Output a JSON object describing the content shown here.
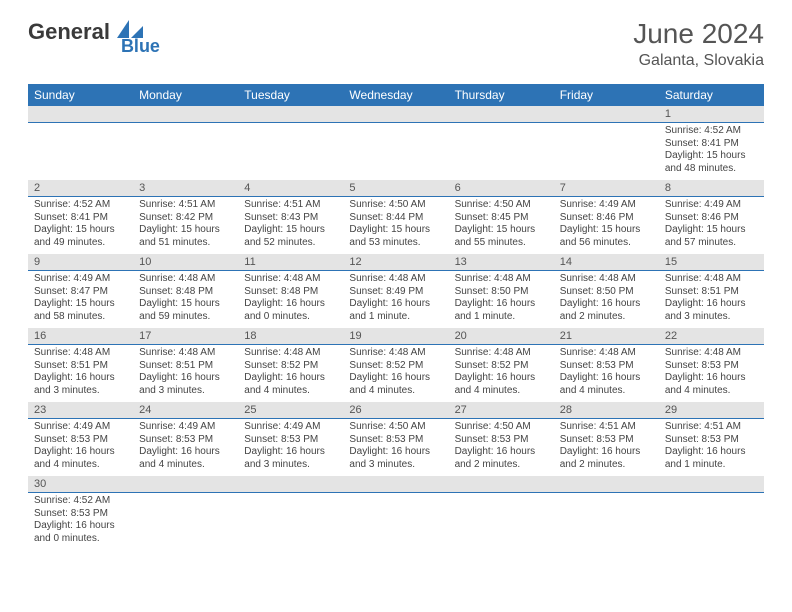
{
  "logo": {
    "text1": "General",
    "text2": "Blue"
  },
  "title": "June 2024",
  "location": "Galanta, Slovakia",
  "colors": {
    "header_bg": "#2d73b5",
    "header_fg": "#ffffff",
    "strip_bg": "#e4e4e4",
    "text": "#3a3a3a"
  },
  "dow": [
    "Sunday",
    "Monday",
    "Tuesday",
    "Wednesday",
    "Thursday",
    "Friday",
    "Saturday"
  ],
  "weeks": [
    {
      "nums": [
        "",
        "",
        "",
        "",
        "",
        "",
        "1"
      ],
      "cells": [
        null,
        null,
        null,
        null,
        null,
        null,
        {
          "sunrise": "Sunrise: 4:52 AM",
          "sunset": "Sunset: 8:41 PM",
          "daylight1": "Daylight: 15 hours",
          "daylight2": "and 48 minutes."
        }
      ]
    },
    {
      "nums": [
        "2",
        "3",
        "4",
        "5",
        "6",
        "7",
        "8"
      ],
      "cells": [
        {
          "sunrise": "Sunrise: 4:52 AM",
          "sunset": "Sunset: 8:41 PM",
          "daylight1": "Daylight: 15 hours",
          "daylight2": "and 49 minutes."
        },
        {
          "sunrise": "Sunrise: 4:51 AM",
          "sunset": "Sunset: 8:42 PM",
          "daylight1": "Daylight: 15 hours",
          "daylight2": "and 51 minutes."
        },
        {
          "sunrise": "Sunrise: 4:51 AM",
          "sunset": "Sunset: 8:43 PM",
          "daylight1": "Daylight: 15 hours",
          "daylight2": "and 52 minutes."
        },
        {
          "sunrise": "Sunrise: 4:50 AM",
          "sunset": "Sunset: 8:44 PM",
          "daylight1": "Daylight: 15 hours",
          "daylight2": "and 53 minutes."
        },
        {
          "sunrise": "Sunrise: 4:50 AM",
          "sunset": "Sunset: 8:45 PM",
          "daylight1": "Daylight: 15 hours",
          "daylight2": "and 55 minutes."
        },
        {
          "sunrise": "Sunrise: 4:49 AM",
          "sunset": "Sunset: 8:46 PM",
          "daylight1": "Daylight: 15 hours",
          "daylight2": "and 56 minutes."
        },
        {
          "sunrise": "Sunrise: 4:49 AM",
          "sunset": "Sunset: 8:46 PM",
          "daylight1": "Daylight: 15 hours",
          "daylight2": "and 57 minutes."
        }
      ]
    },
    {
      "nums": [
        "9",
        "10",
        "11",
        "12",
        "13",
        "14",
        "15"
      ],
      "cells": [
        {
          "sunrise": "Sunrise: 4:49 AM",
          "sunset": "Sunset: 8:47 PM",
          "daylight1": "Daylight: 15 hours",
          "daylight2": "and 58 minutes."
        },
        {
          "sunrise": "Sunrise: 4:48 AM",
          "sunset": "Sunset: 8:48 PM",
          "daylight1": "Daylight: 15 hours",
          "daylight2": "and 59 minutes."
        },
        {
          "sunrise": "Sunrise: 4:48 AM",
          "sunset": "Sunset: 8:48 PM",
          "daylight1": "Daylight: 16 hours",
          "daylight2": "and 0 minutes."
        },
        {
          "sunrise": "Sunrise: 4:48 AM",
          "sunset": "Sunset: 8:49 PM",
          "daylight1": "Daylight: 16 hours",
          "daylight2": "and 1 minute."
        },
        {
          "sunrise": "Sunrise: 4:48 AM",
          "sunset": "Sunset: 8:50 PM",
          "daylight1": "Daylight: 16 hours",
          "daylight2": "and 1 minute."
        },
        {
          "sunrise": "Sunrise: 4:48 AM",
          "sunset": "Sunset: 8:50 PM",
          "daylight1": "Daylight: 16 hours",
          "daylight2": "and 2 minutes."
        },
        {
          "sunrise": "Sunrise: 4:48 AM",
          "sunset": "Sunset: 8:51 PM",
          "daylight1": "Daylight: 16 hours",
          "daylight2": "and 3 minutes."
        }
      ]
    },
    {
      "nums": [
        "16",
        "17",
        "18",
        "19",
        "20",
        "21",
        "22"
      ],
      "cells": [
        {
          "sunrise": "Sunrise: 4:48 AM",
          "sunset": "Sunset: 8:51 PM",
          "daylight1": "Daylight: 16 hours",
          "daylight2": "and 3 minutes."
        },
        {
          "sunrise": "Sunrise: 4:48 AM",
          "sunset": "Sunset: 8:51 PM",
          "daylight1": "Daylight: 16 hours",
          "daylight2": "and 3 minutes."
        },
        {
          "sunrise": "Sunrise: 4:48 AM",
          "sunset": "Sunset: 8:52 PM",
          "daylight1": "Daylight: 16 hours",
          "daylight2": "and 4 minutes."
        },
        {
          "sunrise": "Sunrise: 4:48 AM",
          "sunset": "Sunset: 8:52 PM",
          "daylight1": "Daylight: 16 hours",
          "daylight2": "and 4 minutes."
        },
        {
          "sunrise": "Sunrise: 4:48 AM",
          "sunset": "Sunset: 8:52 PM",
          "daylight1": "Daylight: 16 hours",
          "daylight2": "and 4 minutes."
        },
        {
          "sunrise": "Sunrise: 4:48 AM",
          "sunset": "Sunset: 8:53 PM",
          "daylight1": "Daylight: 16 hours",
          "daylight2": "and 4 minutes."
        },
        {
          "sunrise": "Sunrise: 4:48 AM",
          "sunset": "Sunset: 8:53 PM",
          "daylight1": "Daylight: 16 hours",
          "daylight2": "and 4 minutes."
        }
      ]
    },
    {
      "nums": [
        "23",
        "24",
        "25",
        "26",
        "27",
        "28",
        "29"
      ],
      "cells": [
        {
          "sunrise": "Sunrise: 4:49 AM",
          "sunset": "Sunset: 8:53 PM",
          "daylight1": "Daylight: 16 hours",
          "daylight2": "and 4 minutes."
        },
        {
          "sunrise": "Sunrise: 4:49 AM",
          "sunset": "Sunset: 8:53 PM",
          "daylight1": "Daylight: 16 hours",
          "daylight2": "and 4 minutes."
        },
        {
          "sunrise": "Sunrise: 4:49 AM",
          "sunset": "Sunset: 8:53 PM",
          "daylight1": "Daylight: 16 hours",
          "daylight2": "and 3 minutes."
        },
        {
          "sunrise": "Sunrise: 4:50 AM",
          "sunset": "Sunset: 8:53 PM",
          "daylight1": "Daylight: 16 hours",
          "daylight2": "and 3 minutes."
        },
        {
          "sunrise": "Sunrise: 4:50 AM",
          "sunset": "Sunset: 8:53 PM",
          "daylight1": "Daylight: 16 hours",
          "daylight2": "and 2 minutes."
        },
        {
          "sunrise": "Sunrise: 4:51 AM",
          "sunset": "Sunset: 8:53 PM",
          "daylight1": "Daylight: 16 hours",
          "daylight2": "and 2 minutes."
        },
        {
          "sunrise": "Sunrise: 4:51 AM",
          "sunset": "Sunset: 8:53 PM",
          "daylight1": "Daylight: 16 hours",
          "daylight2": "and 1 minute."
        }
      ]
    },
    {
      "nums": [
        "30",
        "",
        "",
        "",
        "",
        "",
        ""
      ],
      "cells": [
        {
          "sunrise": "Sunrise: 4:52 AM",
          "sunset": "Sunset: 8:53 PM",
          "daylight1": "Daylight: 16 hours",
          "daylight2": "and 0 minutes."
        },
        null,
        null,
        null,
        null,
        null,
        null
      ]
    }
  ]
}
